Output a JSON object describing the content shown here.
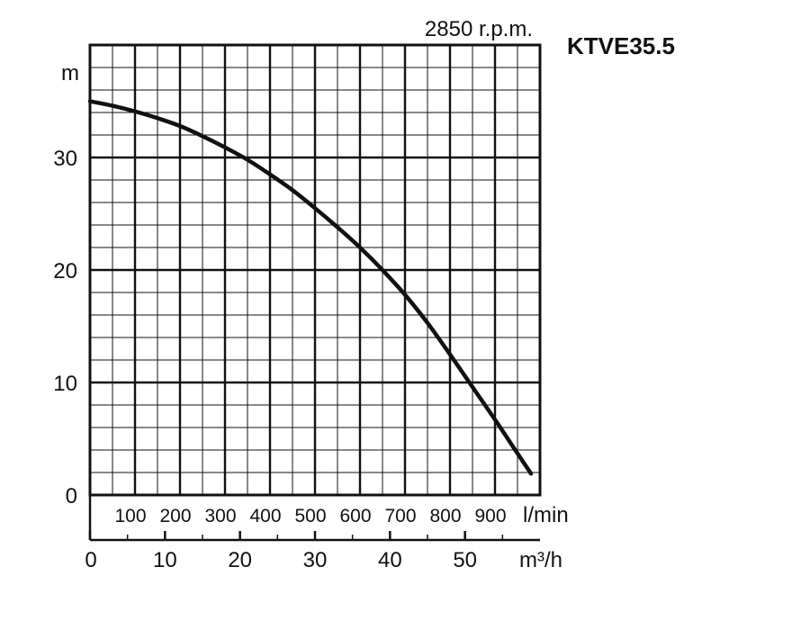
{
  "chart_data": {
    "type": "line",
    "title": "KTVE35.5",
    "subtitle": "2850 r.p.m.",
    "ylabel": "m",
    "xlabel_flow_lmin": "l/min",
    "xlabel_flow_m3h": "m³/h",
    "ylim": [
      0,
      35
    ],
    "xlim_lmin": [
      0,
      1000
    ],
    "grid": true,
    "y_ticks": [
      "0",
      "10",
      "20",
      "30"
    ],
    "y_tick_values": [
      0,
      10,
      20,
      30
    ],
    "lmin_ticks": [
      "100",
      "200",
      "300",
      "400",
      "500",
      "600",
      "700",
      "800",
      "900"
    ],
    "lmin_tick_values": [
      100,
      200,
      300,
      400,
      500,
      600,
      700,
      800,
      900
    ],
    "m3h_ticks": [
      "0",
      "10",
      "20",
      "30",
      "40",
      "50"
    ],
    "m3h_tick_values": [
      0,
      10,
      20,
      30,
      40,
      50
    ],
    "series": [
      {
        "x_lmin": [
          0,
          50,
          100,
          150,
          200,
          250,
          300,
          350,
          400,
          450,
          500,
          550,
          600,
          650,
          700,
          750,
          800,
          850,
          900,
          950,
          980
        ],
        "y": [
          35,
          34.6,
          34.1,
          33.5,
          32.8,
          31.9,
          30.9,
          29.8,
          28.5,
          27.1,
          25.5,
          23.8,
          22.0,
          20.0,
          17.8,
          15.3,
          12.5,
          9.6,
          6.7,
          3.7,
          1.9
        ]
      }
    ]
  }
}
